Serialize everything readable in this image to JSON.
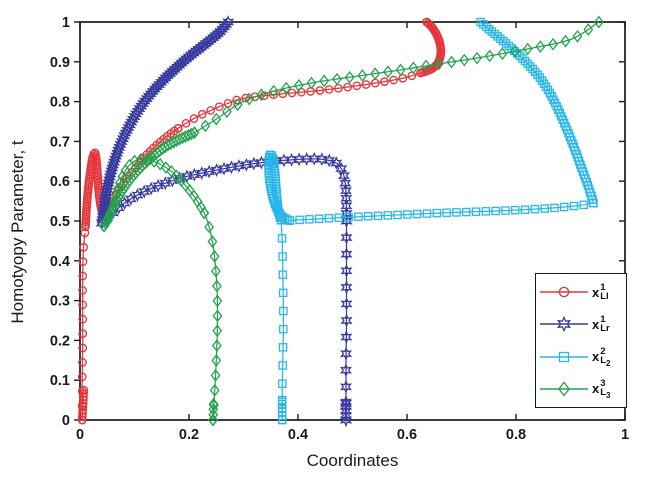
{
  "figure": {
    "background": "#ffffff",
    "axis_color": "#1b1b1b",
    "tick_label_color": "#1b1b1b"
  },
  "chart_data": {
    "type": "line",
    "title": "",
    "xlabel": "Coordinates",
    "ylabel": "Homotyopy Parameter, t",
    "xlim": [
      0,
      1
    ],
    "ylim": [
      0,
      1
    ],
    "grid": false,
    "frame": true,
    "legend_position": "lower right",
    "xticks": {
      "values": [
        0,
        0.2,
        0.4,
        0.6,
        0.8,
        1
      ],
      "labels": [
        "0",
        "0.2",
        "0.4",
        "0.6",
        "0.8",
        "1"
      ]
    },
    "yticks": {
      "values": [
        0,
        0.1,
        0.2,
        0.3,
        0.4,
        0.5,
        0.6,
        0.7,
        0.8,
        0.9,
        1
      ],
      "labels": [
        "0",
        "0.1",
        "0.2",
        "0.3",
        "0.4",
        "0.5",
        "0.6",
        "0.7",
        "0.8",
        "0.9",
        "1"
      ]
    },
    "series": [
      {
        "name": "x_Ll^1",
        "legend": {
          "base": "x",
          "sup": "1",
          "sub": "Ll",
          "subsub": ""
        },
        "color": "#e63338",
        "marker": "circle",
        "segments": [
          {
            "marker_count": 10,
            "points": [
              [
                0.004,
                0.0
              ],
              [
                0.005,
                0.025
              ],
              [
                0.006,
                0.05
              ],
              [
                0.007,
                0.075
              ]
            ]
          },
          {
            "marker_count": 14,
            "points": [
              [
                0.004,
                0.0
              ],
              [
                0.004,
                0.09
              ],
              [
                0.005,
                0.18
              ],
              [
                0.005,
                0.27
              ],
              [
                0.005,
                0.35
              ],
              [
                0.006,
                0.42
              ],
              [
                0.009,
                0.47
              ]
            ]
          },
          {
            "marker_count": 55,
            "points": [
              [
                0.01,
                0.485
              ],
              [
                0.012,
                0.53
              ],
              [
                0.015,
                0.58
              ],
              [
                0.019,
                0.625
              ],
              [
                0.023,
                0.658
              ],
              [
                0.027,
                0.672
              ],
              [
                0.03,
                0.655
              ],
              [
                0.032,
                0.62
              ],
              [
                0.034,
                0.58
              ],
              [
                0.037,
                0.545
              ],
              [
                0.041,
                0.52
              ]
            ]
          },
          {
            "marker_count": 26,
            "points": [
              [
                0.044,
                0.52
              ],
              [
                0.055,
                0.545
              ],
              [
                0.07,
                0.575
              ],
              [
                0.085,
                0.605
              ],
              [
                0.1,
                0.63
              ],
              [
                0.12,
                0.663
              ],
              [
                0.14,
                0.69
              ],
              [
                0.16,
                0.713
              ],
              [
                0.18,
                0.733
              ]
            ]
          },
          {
            "marker_count": 28,
            "points": [
              [
                0.18,
                0.733
              ],
              [
                0.21,
                0.758
              ],
              [
                0.24,
                0.778
              ],
              [
                0.27,
                0.795
              ],
              [
                0.3,
                0.808
              ],
              [
                0.36,
                0.818
              ],
              [
                0.44,
                0.828
              ],
              [
                0.52,
                0.842
              ],
              [
                0.59,
                0.858
              ],
              [
                0.625,
                0.872
              ]
            ]
          },
          {
            "marker_count": 34,
            "points": [
              [
                0.625,
                0.872
              ],
              [
                0.645,
                0.882
              ],
              [
                0.657,
                0.898
              ],
              [
                0.662,
                0.922
              ],
              [
                0.66,
                0.948
              ],
              [
                0.653,
                0.972
              ],
              [
                0.644,
                0.99
              ],
              [
                0.636,
                1.0
              ]
            ]
          }
        ]
      },
      {
        "name": "x_Lr^1",
        "legend": {
          "base": "x",
          "sup": "1",
          "sub": "Lr",
          "subsub": ""
        },
        "color": "#3a3b9f",
        "marker": "hexagram",
        "segments": [
          {
            "marker_count": 80,
            "points": [
              [
                0.04,
                0.495
              ],
              [
                0.044,
                0.53
              ],
              [
                0.049,
                0.575
              ],
              [
                0.056,
                0.617
              ],
              [
                0.065,
                0.658
              ],
              [
                0.076,
                0.698
              ],
              [
                0.09,
                0.738
              ],
              [
                0.107,
                0.778
              ],
              [
                0.127,
                0.815
              ],
              [
                0.15,
                0.85
              ],
              [
                0.175,
                0.883
              ],
              [
                0.202,
                0.915
              ],
              [
                0.23,
                0.945
              ],
              [
                0.255,
                0.973
              ],
              [
                0.272,
                1.0
              ]
            ]
          },
          {
            "marker_count": 42,
            "points": [
              [
                0.04,
                0.495
              ],
              [
                0.06,
                0.52
              ],
              [
                0.085,
                0.548
              ],
              [
                0.115,
                0.572
              ],
              [
                0.15,
                0.592
              ],
              [
                0.19,
                0.61
              ],
              [
                0.24,
                0.625
              ],
              [
                0.29,
                0.638
              ],
              [
                0.34,
                0.648
              ],
              [
                0.39,
                0.654
              ],
              [
                0.435,
                0.656
              ],
              [
                0.465,
                0.649
              ],
              [
                0.478,
                0.635
              ],
              [
                0.485,
                0.61
              ],
              [
                0.488,
                0.575
              ],
              [
                0.489,
                0.53
              ],
              [
                0.489,
                0.5
              ]
            ]
          },
          {
            "marker_count": 13,
            "points": [
              [
                0.489,
                0.5
              ],
              [
                0.489,
                0.42
              ],
              [
                0.489,
                0.33
              ],
              [
                0.489,
                0.24
              ],
              [
                0.488,
                0.15
              ],
              [
                0.488,
                0.07
              ],
              [
                0.488,
                0.0
              ]
            ]
          },
          {
            "marker_count": 5,
            "points": [
              [
                0.488,
                0.045
              ],
              [
                0.488,
                0.0
              ]
            ]
          }
        ]
      },
      {
        "name": "x_L2^2",
        "legend": {
          "base": "x",
          "sup": "2",
          "sub": "L",
          "subsub": "2"
        },
        "color": "#29b7ea",
        "marker": "square",
        "segments": [
          {
            "marker_count": 60,
            "points": [
              [
                0.735,
                1.0
              ],
              [
                0.757,
                0.974
              ],
              [
                0.78,
                0.948
              ],
              [
                0.803,
                0.92
              ],
              [
                0.825,
                0.89
              ],
              [
                0.845,
                0.858
              ],
              [
                0.861,
                0.824
              ],
              [
                0.874,
                0.79
              ],
              [
                0.885,
                0.757
              ],
              [
                0.897,
                0.718
              ],
              [
                0.91,
                0.672
              ],
              [
                0.922,
                0.627
              ],
              [
                0.933,
                0.585
              ],
              [
                0.94,
                0.556
              ],
              [
                0.942,
                0.545
              ]
            ]
          },
          {
            "marker_count": 32,
            "points": [
              [
                0.942,
                0.545
              ],
              [
                0.915,
                0.539
              ],
              [
                0.87,
                0.533
              ],
              [
                0.81,
                0.528
              ],
              [
                0.74,
                0.524
              ],
              [
                0.66,
                0.52
              ],
              [
                0.58,
                0.515
              ],
              [
                0.5,
                0.51
              ],
              [
                0.445,
                0.506
              ],
              [
                0.405,
                0.503
              ],
              [
                0.385,
                0.501
              ]
            ]
          },
          {
            "marker_count": 55,
            "points": [
              [
                0.385,
                0.501
              ],
              [
                0.37,
                0.512
              ],
              [
                0.36,
                0.535
              ],
              [
                0.353,
                0.565
              ],
              [
                0.348,
                0.6
              ],
              [
                0.346,
                0.635
              ],
              [
                0.347,
                0.66
              ],
              [
                0.351,
                0.667
              ],
              [
                0.355,
                0.648
              ],
              [
                0.358,
                0.62
              ],
              [
                0.36,
                0.585
              ],
              [
                0.362,
                0.55
              ],
              [
                0.365,
                0.52
              ],
              [
                0.369,
                0.502
              ]
            ]
          },
          {
            "marker_count": 12,
            "points": [
              [
                0.369,
                0.502
              ],
              [
                0.371,
                0.45
              ],
              [
                0.372,
                0.38
              ],
              [
                0.373,
                0.3
              ],
              [
                0.373,
                0.22
              ],
              [
                0.372,
                0.14
              ],
              [
                0.371,
                0.07
              ],
              [
                0.371,
                0.0
              ]
            ]
          },
          {
            "marker_count": 6,
            "points": [
              [
                0.371,
                0.05
              ],
              [
                0.371,
                0.0
              ]
            ]
          }
        ]
      },
      {
        "name": "x_L3^3",
        "legend": {
          "base": "x",
          "sup": "3",
          "sub": "L",
          "subsub": "3"
        },
        "color": "#22a24c",
        "marker": "diamond",
        "segments": [
          {
            "marker_count": 15,
            "points": [
              [
                0.244,
                0.0
              ],
              [
                0.247,
                0.07
              ],
              [
                0.25,
                0.15
              ],
              [
                0.252,
                0.23
              ],
              [
                0.252,
                0.31
              ],
              [
                0.249,
                0.38
              ],
              [
                0.244,
                0.44
              ],
              [
                0.236,
                0.49
              ],
              [
                0.228,
                0.52
              ]
            ]
          },
          {
            "marker_count": 4,
            "points": [
              [
                0.245,
                0.04
              ],
              [
                0.244,
                0.0
              ]
            ]
          },
          {
            "marker_count": 26,
            "points": [
              [
                0.228,
                0.52
              ],
              [
                0.212,
                0.557
              ],
              [
                0.192,
                0.592
              ],
              [
                0.17,
                0.622
              ],
              [
                0.148,
                0.642
              ],
              [
                0.127,
                0.653
              ],
              [
                0.11,
                0.655
              ],
              [
                0.096,
                0.647
              ],
              [
                0.085,
                0.63
              ],
              [
                0.076,
                0.606
              ],
              [
                0.069,
                0.578
              ],
              [
                0.063,
                0.548
              ],
              [
                0.057,
                0.52
              ],
              [
                0.05,
                0.498
              ],
              [
                0.044,
                0.487
              ]
            ]
          },
          {
            "marker_count": 42,
            "points": [
              [
                0.044,
                0.487
              ],
              [
                0.054,
                0.515
              ],
              [
                0.068,
                0.552
              ],
              [
                0.085,
                0.59
              ],
              [
                0.105,
                0.625
              ],
              [
                0.13,
                0.658
              ],
              [
                0.155,
                0.685
              ],
              [
                0.182,
                0.705
              ],
              [
                0.21,
                0.722
              ]
            ]
          },
          {
            "marker_count": 34,
            "points": [
              [
                0.21,
                0.722
              ],
              [
                0.25,
                0.756
              ],
              [
                0.3,
                0.8
              ],
              [
                0.36,
                0.828
              ],
              [
                0.43,
                0.848
              ],
              [
                0.5,
                0.862
              ],
              [
                0.58,
                0.878
              ],
              [
                0.66,
                0.895
              ],
              [
                0.74,
                0.912
              ],
              [
                0.82,
                0.932
              ],
              [
                0.9,
                0.956
              ],
              [
                0.952,
                1.0
              ]
            ]
          }
        ]
      }
    ]
  }
}
